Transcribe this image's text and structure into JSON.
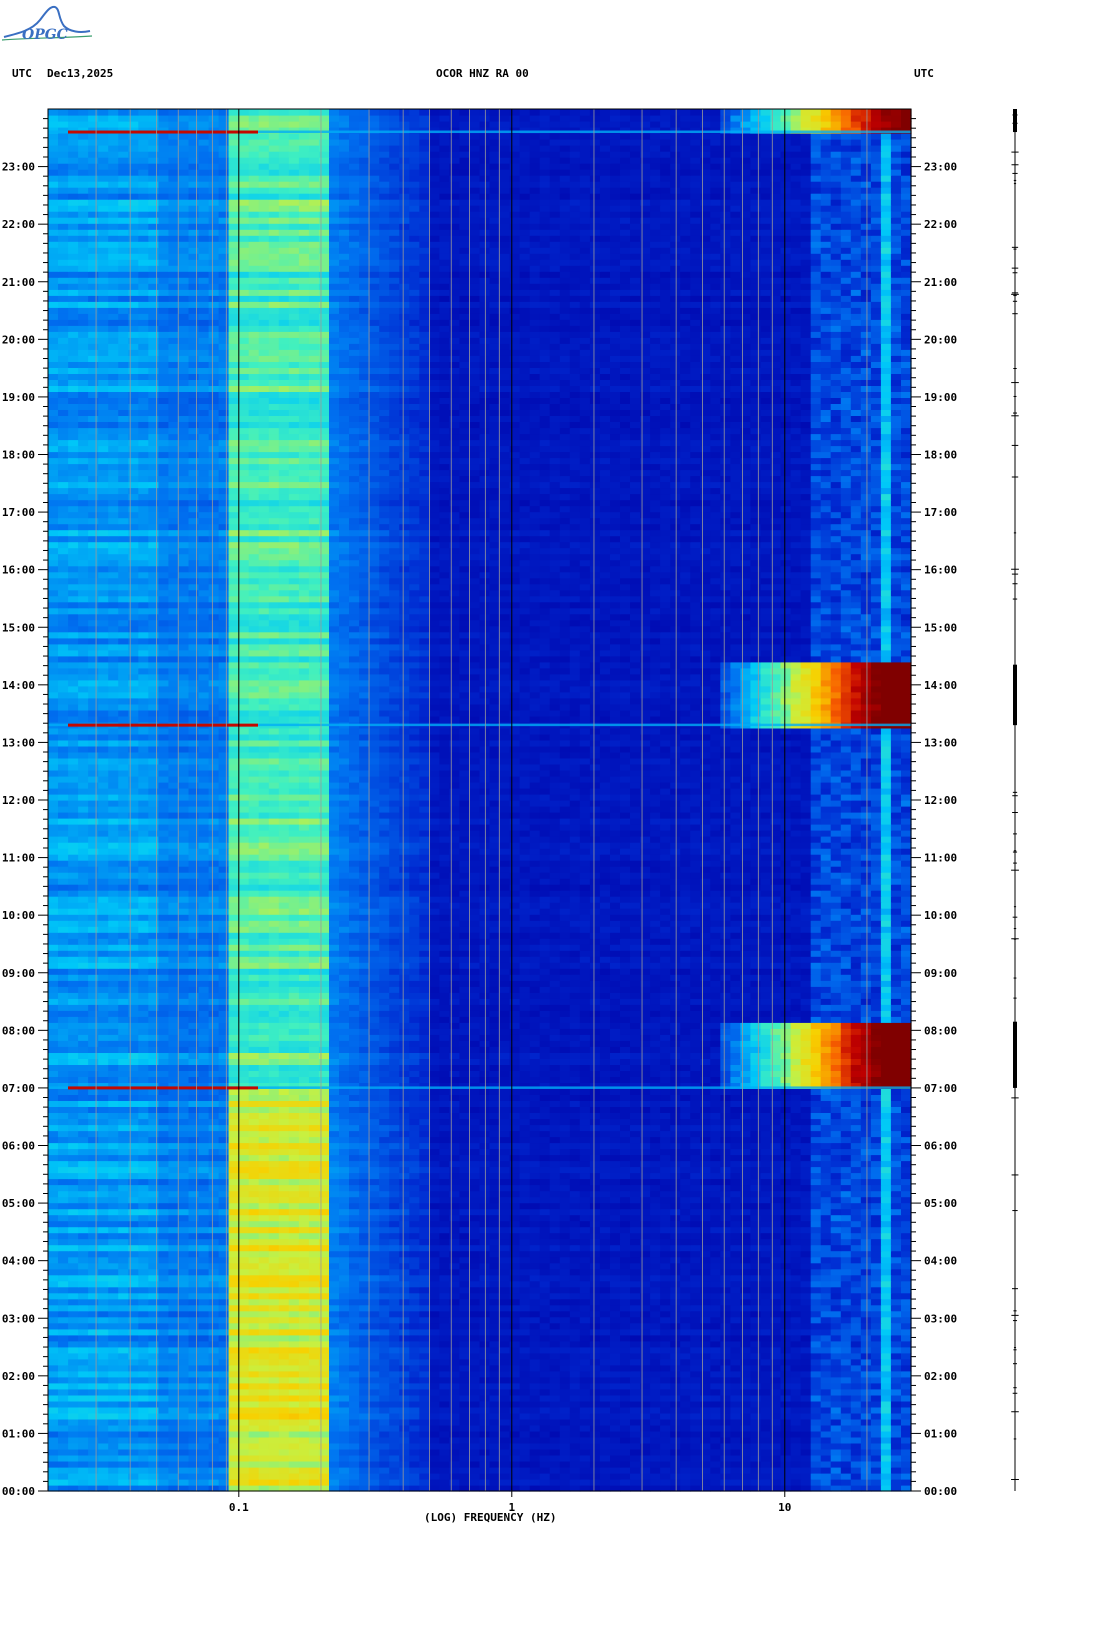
{
  "header": {
    "left_tz": "UTC",
    "date": "Dec13,2025",
    "channel": "OCOR HNZ RA 00",
    "right_tz": "UTC"
  },
  "logo": {
    "text": "OPGC",
    "icon": "mountain-logo-icon",
    "color": "#3a6fc2"
  },
  "chart_data": {
    "type": "heatmap",
    "title": "OCOR HNZ RA 00",
    "xlabel": "(LOG) FREQUENCY (HZ)",
    "ylabel": "",
    "x_scale": "log",
    "xlim": [
      0.02,
      29
    ],
    "x_ticks": [
      0.1,
      1,
      10
    ],
    "x_tick_labels": [
      "0.1",
      "1",
      "10"
    ],
    "ylim": [
      0,
      24
    ],
    "y_ticks": [
      0,
      1,
      2,
      3,
      4,
      5,
      6,
      7,
      8,
      9,
      10,
      11,
      12,
      13,
      14,
      15,
      16,
      17,
      18,
      19,
      20,
      21,
      22,
      23
    ],
    "y_tick_labels": [
      "00:00",
      "01:00",
      "02:00",
      "03:00",
      "04:00",
      "05:00",
      "06:00",
      "07:00",
      "08:00",
      "09:00",
      "10:00",
      "11:00",
      "12:00",
      "13:00",
      "14:00",
      "15:00",
      "16:00",
      "17:00",
      "18:00",
      "19:00",
      "20:00",
      "21:00",
      "22:00",
      "23:00"
    ],
    "colormap": [
      "#0000a8",
      "#0028d0",
      "#0070f0",
      "#00c8f8",
      "#40f0c0",
      "#c8f040",
      "#f8d000",
      "#f86000",
      "#c00000",
      "#800000"
    ],
    "bursts": [
      {
        "start": 7.0,
        "end": 8.15,
        "peak_intensity": 1.0
      },
      {
        "start": 13.3,
        "end": 14.35,
        "peak_intensity": 1.0
      },
      {
        "start": 23.6,
        "end": 24.0,
        "peak_intensity": 0.9
      }
    ]
  }
}
